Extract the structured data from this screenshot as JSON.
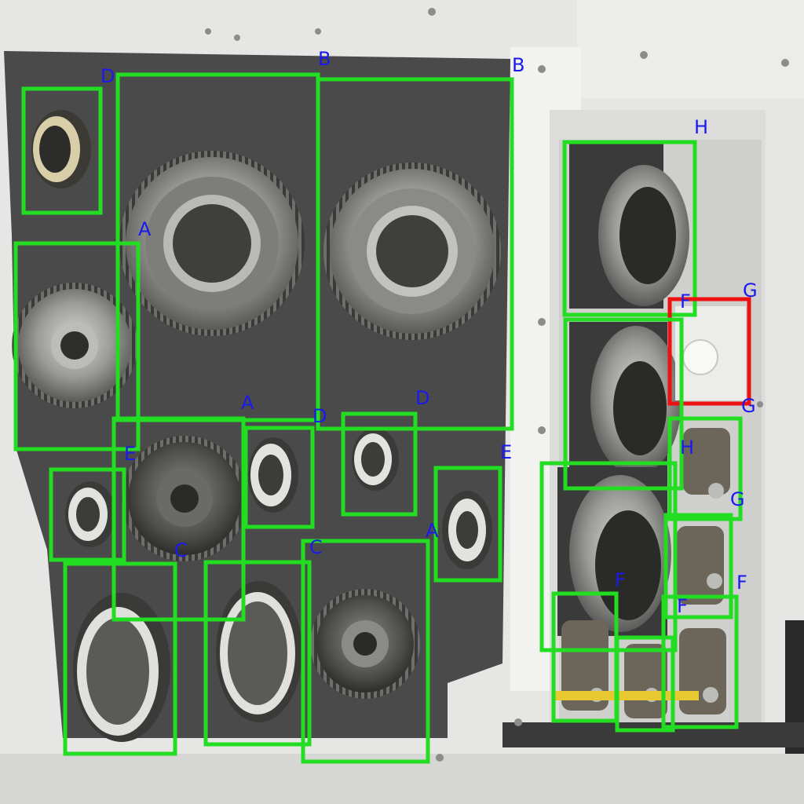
{
  "image": {
    "description_kind": "photo",
    "colors": {
      "box_default": "#22dd22",
      "box_highlight": "#ee1111",
      "label": "#1a1aee",
      "board": "#4a4a4a",
      "cabinet": "#e8e8e6"
    }
  },
  "boxes": [
    {
      "label": "D",
      "status": "ok"
    },
    {
      "label": "B",
      "status": "ok"
    },
    {
      "label": "B",
      "status": "ok"
    },
    {
      "label": "A",
      "status": "ok"
    },
    {
      "label": "A",
      "status": "ok"
    },
    {
      "label": "D",
      "status": "ok"
    },
    {
      "label": "D",
      "status": "ok"
    },
    {
      "label": "E",
      "status": "ok"
    },
    {
      "label": "E",
      "status": "ok"
    },
    {
      "label": "A",
      "status": "ok"
    },
    {
      "label": "C",
      "status": "ok"
    },
    {
      "label": "C",
      "status": "ok"
    },
    {
      "label": "H",
      "status": "ok"
    },
    {
      "label": "G",
      "status": "flagged"
    },
    {
      "label": "G",
      "status": "ok"
    },
    {
      "label": "H",
      "status": "ok"
    },
    {
      "label": "G",
      "status": "ok"
    },
    {
      "label": "F",
      "status": "ok"
    },
    {
      "label": "F",
      "status": "ok"
    },
    {
      "label": "F",
      "status": "ok"
    },
    {
      "label": "F",
      "status": "ok"
    }
  ]
}
